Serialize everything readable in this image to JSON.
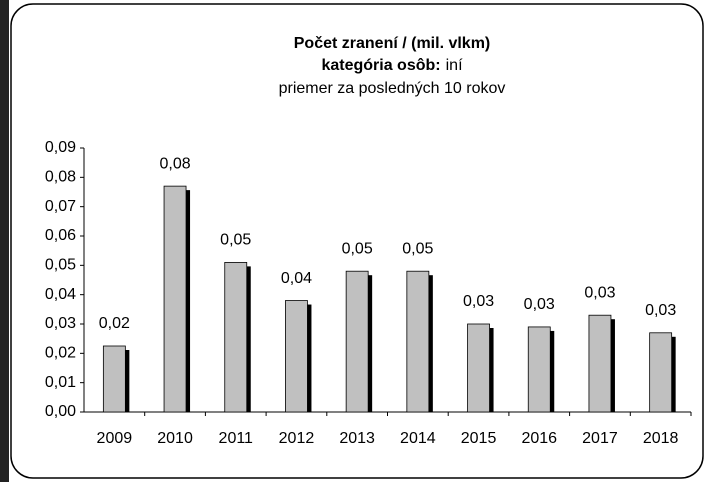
{
  "chart_data": {
    "type": "bar",
    "title": "Počet zranení / (mil. vlkm)",
    "category_label": "kategória osôb:",
    "category": "iní",
    "subtitle": "priemer za posledných 10 rokov",
    "categories": [
      "2009",
      "2010",
      "2011",
      "2012",
      "2013",
      "2014",
      "2015",
      "2016",
      "2017",
      "2018"
    ],
    "values": [
      0.0225,
      0.077,
      0.051,
      0.038,
      0.048,
      0.048,
      0.03,
      0.029,
      0.033,
      0.027
    ],
    "value_labels": [
      "0,02",
      "0,08",
      "0,05",
      "0,04",
      "0,05",
      "0,05",
      "0,03",
      "0,03",
      "0,03",
      "0,03"
    ],
    "color": "#c0c0c0",
    "ylim": [
      0,
      0.09
    ],
    "yticks": [
      {
        "value": 0,
        "label": "0,00"
      },
      {
        "value": 0.01,
        "label": "0,01"
      },
      {
        "value": 0.02,
        "label": "0,02"
      },
      {
        "value": 0.03,
        "label": "0,03"
      },
      {
        "value": 0.04,
        "label": "0,04"
      },
      {
        "value": 0.05,
        "label": "0,05"
      },
      {
        "value": 0.06,
        "label": "0,06"
      },
      {
        "value": 0.07,
        "label": "0,07"
      },
      {
        "value": 0.08,
        "label": "0,08"
      },
      {
        "value": 0.09,
        "label": "0,09"
      }
    ],
    "grid": false
  }
}
